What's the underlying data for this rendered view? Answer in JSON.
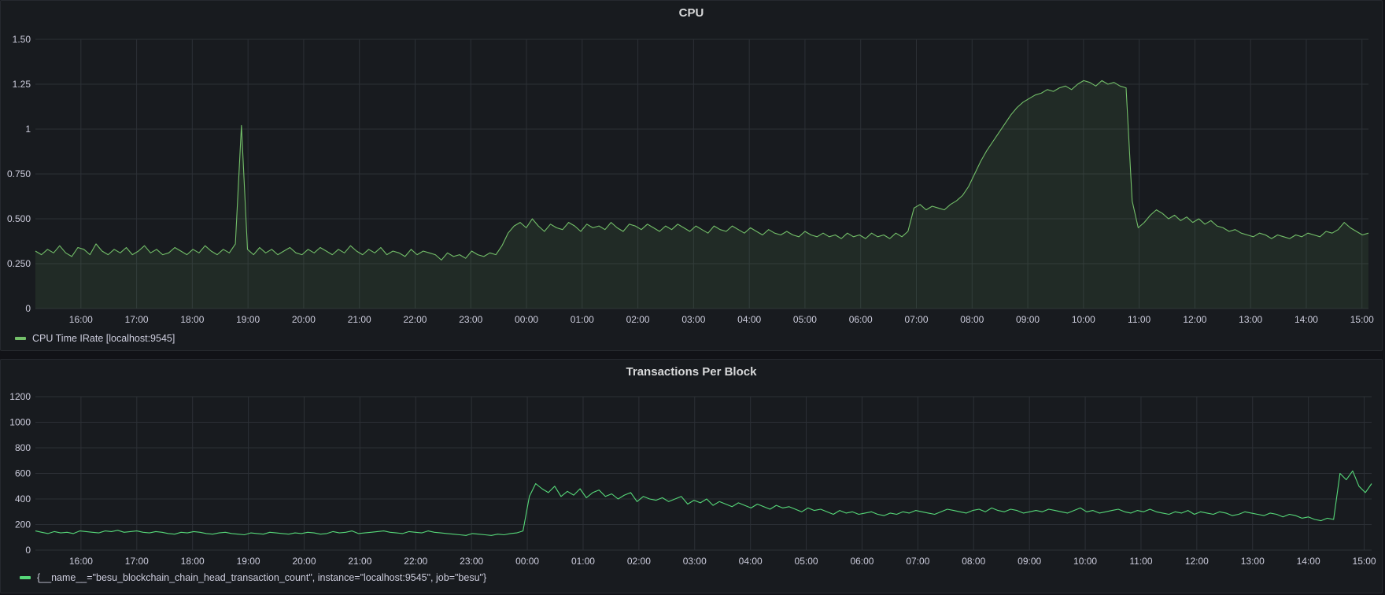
{
  "panels": {
    "cpu": {
      "title": "CPU",
      "legend": "CPU Time IRate [localhost:9545]"
    },
    "tx": {
      "title": "Transactions Per Block",
      "legend": "{__name__=\"besu_blockchain_chain_head_transaction_count\", instance=\"localhost:9545\", job=\"besu\"}"
    }
  },
  "colors": {
    "background": "#111217",
    "panel": "#181b1f",
    "grid": "#2c3036",
    "series": "#73bf69",
    "series_bright": "#56d879"
  },
  "chart_data": [
    {
      "type": "area",
      "title": "CPU",
      "xlabel": "",
      "ylabel": "",
      "ylim": [
        0,
        1.5
      ],
      "yticks": [
        "0",
        "0.250",
        "0.500",
        "0.750",
        "1",
        "1.25",
        "1.50"
      ],
      "ytick_values": [
        0,
        0.25,
        0.5,
        0.75,
        1,
        1.25,
        1.5
      ],
      "xticks": [
        "16:00",
        "17:00",
        "18:00",
        "19:00",
        "20:00",
        "21:00",
        "22:00",
        "23:00",
        "00:00",
        "01:00",
        "02:00",
        "03:00",
        "04:00",
        "05:00",
        "06:00",
        "07:00",
        "08:00",
        "09:00",
        "10:00",
        "11:00",
        "12:00",
        "13:00",
        "14:00",
        "15:00"
      ],
      "grid": true,
      "legend_position": "bottom-left",
      "series": [
        {
          "name": "CPU Time IRate [localhost:9545]",
          "color": "#73bf69",
          "x_start": "15:11",
          "x_end": "15:07",
          "values": [
            0.32,
            0.3,
            0.33,
            0.31,
            0.35,
            0.31,
            0.29,
            0.34,
            0.33,
            0.3,
            0.36,
            0.32,
            0.3,
            0.33,
            0.31,
            0.34,
            0.3,
            0.32,
            0.35,
            0.31,
            0.33,
            0.3,
            0.31,
            0.34,
            0.32,
            0.3,
            0.33,
            0.31,
            0.35,
            0.32,
            0.3,
            0.33,
            0.31,
            0.36,
            1.02,
            0.33,
            0.3,
            0.34,
            0.31,
            0.33,
            0.3,
            0.32,
            0.34,
            0.31,
            0.3,
            0.33,
            0.31,
            0.34,
            0.32,
            0.3,
            0.33,
            0.31,
            0.35,
            0.32,
            0.3,
            0.33,
            0.31,
            0.34,
            0.3,
            0.32,
            0.31,
            0.29,
            0.33,
            0.3,
            0.32,
            0.31,
            0.3,
            0.27,
            0.31,
            0.29,
            0.3,
            0.28,
            0.32,
            0.3,
            0.29,
            0.31,
            0.3,
            0.35,
            0.42,
            0.46,
            0.48,
            0.45,
            0.5,
            0.46,
            0.43,
            0.47,
            0.45,
            0.44,
            0.48,
            0.46,
            0.43,
            0.47,
            0.45,
            0.46,
            0.44,
            0.48,
            0.45,
            0.43,
            0.47,
            0.46,
            0.44,
            0.47,
            0.45,
            0.43,
            0.46,
            0.44,
            0.47,
            0.45,
            0.43,
            0.46,
            0.44,
            0.42,
            0.46,
            0.44,
            0.43,
            0.46,
            0.44,
            0.42,
            0.45,
            0.43,
            0.41,
            0.44,
            0.42,
            0.41,
            0.43,
            0.41,
            0.4,
            0.43,
            0.41,
            0.4,
            0.42,
            0.4,
            0.41,
            0.39,
            0.42,
            0.4,
            0.41,
            0.39,
            0.42,
            0.4,
            0.41,
            0.39,
            0.42,
            0.4,
            0.43,
            0.56,
            0.58,
            0.55,
            0.57,
            0.56,
            0.55,
            0.58,
            0.6,
            0.63,
            0.68,
            0.75,
            0.82,
            0.88,
            0.93,
            0.98,
            1.03,
            1.08,
            1.12,
            1.15,
            1.17,
            1.19,
            1.2,
            1.22,
            1.21,
            1.23,
            1.24,
            1.22,
            1.25,
            1.27,
            1.26,
            1.24,
            1.27,
            1.25,
            1.26,
            1.24,
            1.23,
            0.6,
            0.45,
            0.48,
            0.52,
            0.55,
            0.53,
            0.5,
            0.52,
            0.49,
            0.51,
            0.48,
            0.5,
            0.47,
            0.49,
            0.46,
            0.45,
            0.43,
            0.44,
            0.42,
            0.41,
            0.4,
            0.42,
            0.41,
            0.39,
            0.41,
            0.4,
            0.39,
            0.41,
            0.4,
            0.42,
            0.41,
            0.4,
            0.43,
            0.42,
            0.44,
            0.48,
            0.45,
            0.43,
            0.41,
            0.42
          ]
        }
      ]
    },
    {
      "type": "line",
      "title": "Transactions Per Block",
      "xlabel": "",
      "ylabel": "",
      "ylim": [
        0,
        1200
      ],
      "yticks": [
        "0",
        "200",
        "400",
        "600",
        "800",
        "1000",
        "1200"
      ],
      "ytick_values": [
        0,
        200,
        400,
        600,
        800,
        1000,
        1200
      ],
      "xticks": [
        "16:00",
        "17:00",
        "18:00",
        "19:00",
        "20:00",
        "21:00",
        "22:00",
        "23:00",
        "00:00",
        "01:00",
        "02:00",
        "03:00",
        "04:00",
        "05:00",
        "06:00",
        "07:00",
        "08:00",
        "09:00",
        "10:00",
        "11:00",
        "12:00",
        "13:00",
        "14:00",
        "15:00"
      ],
      "grid": true,
      "legend_position": "bottom-left",
      "series": [
        {
          "name": "{__name__=\"besu_blockchain_chain_head_transaction_count\", instance=\"localhost:9545\", job=\"besu\"}",
          "color": "#56d879",
          "x_start": "15:11",
          "x_end": "15:08",
          "values": [
            150,
            140,
            130,
            145,
            135,
            140,
            130,
            150,
            145,
            140,
            135,
            150,
            145,
            155,
            140,
            145,
            150,
            140,
            135,
            145,
            140,
            130,
            125,
            140,
            135,
            145,
            140,
            130,
            125,
            135,
            140,
            130,
            125,
            120,
            135,
            130,
            125,
            140,
            135,
            130,
            125,
            135,
            130,
            140,
            135,
            125,
            130,
            145,
            135,
            140,
            150,
            130,
            135,
            140,
            145,
            150,
            140,
            135,
            130,
            145,
            140,
            135,
            150,
            140,
            135,
            130,
            125,
            120,
            115,
            130,
            125,
            120,
            115,
            125,
            120,
            130,
            135,
            150,
            420,
            520,
            480,
            450,
            500,
            420,
            460,
            430,
            480,
            410,
            450,
            470,
            420,
            440,
            400,
            430,
            450,
            380,
            420,
            400,
            390,
            410,
            380,
            400,
            420,
            360,
            390,
            370,
            400,
            350,
            380,
            360,
            340,
            370,
            350,
            330,
            360,
            340,
            320,
            350,
            330,
            340,
            320,
            300,
            330,
            310,
            320,
            300,
            280,
            310,
            290,
            300,
            280,
            290,
            300,
            280,
            270,
            290,
            280,
            300,
            290,
            310,
            300,
            290,
            280,
            300,
            320,
            310,
            300,
            290,
            310,
            320,
            300,
            330,
            310,
            300,
            320,
            310,
            290,
            300,
            310,
            300,
            320,
            310,
            300,
            290,
            310,
            330,
            300,
            310,
            290,
            300,
            310,
            320,
            300,
            290,
            310,
            300,
            320,
            300,
            290,
            280,
            300,
            290,
            310,
            280,
            300,
            290,
            280,
            300,
            290,
            270,
            280,
            300,
            290,
            280,
            270,
            290,
            280,
            260,
            280,
            270,
            250,
            260,
            240,
            230,
            250,
            240,
            600,
            550,
            620,
            500,
            450,
            520
          ]
        }
      ]
    }
  ]
}
